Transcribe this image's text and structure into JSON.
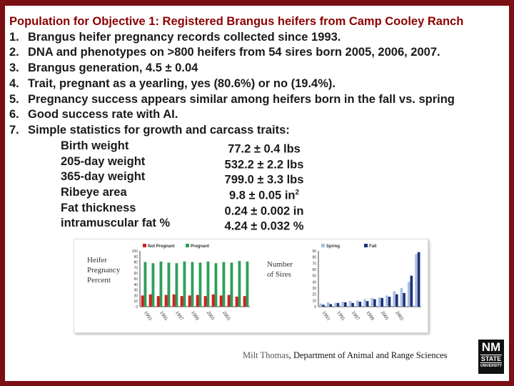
{
  "heading": "Population for Objective 1: Registered Brangus heifers from Camp Cooley Ranch",
  "items": [
    {
      "num": "1.",
      "text": "Brangus heifer pregnancy records collected since 1993."
    },
    {
      "num": "2.",
      "text": "DNA and phenotypes on >800 heifers from 54 sires born 2005, 2006, 2007."
    },
    {
      "num": "3.",
      "text": "Brangus generation, 4.5 ± 0.04"
    },
    {
      "num": "4.",
      "text": "Trait, pregnant as a yearling, yes (80.6%) or no (19.4%)."
    },
    {
      "num": "5.",
      "text": "Pregnancy success appears similar among heifers born in the fall vs. spring"
    },
    {
      "num": "6.",
      "text": "Good success rate with AI."
    },
    {
      "num": "7.",
      "text": "Simple statistics for growth and carcass traits:"
    }
  ],
  "stats": [
    {
      "label": "Birth weight",
      "value": "77.2 ± 0.4 lbs",
      "sup": ""
    },
    {
      "label": "205-day weight",
      "value": "532.2 ± 2.2 lbs",
      "sup": ""
    },
    {
      "label": "365-day weight",
      "value": "799.0 ± 3.3 lbs",
      "sup": ""
    },
    {
      "label": "Ribeye area",
      "value": "9.8 ± 0.05 in",
      "sup": "2"
    },
    {
      "label": "Fat thickness",
      "value": "0.24 ± 0.002 in",
      "sup": ""
    },
    {
      "label": "intramuscular fat %",
      "value": "4.24 ± 0.032 %",
      "sup": ""
    }
  ],
  "figure": {
    "left_ylabel": [
      "Heifer",
      "Pregnancy",
      "Percent"
    ],
    "right_ylabel": [
      "Number",
      "of Sires"
    ]
  },
  "chart_data": [
    {
      "type": "bar",
      "ylabel": "Heifer Pregnancy Percent",
      "ylim": [
        0,
        100
      ],
      "yticks": [
        "0",
        "10",
        "20",
        "30",
        "40",
        "50",
        "60",
        "70",
        "80",
        "90",
        "100"
      ],
      "xticks": [
        "1993",
        "1995",
        "1997",
        "1999",
        "2001",
        "2003"
      ],
      "categories": [
        "1993",
        "1994",
        "1995",
        "1996",
        "1997",
        "1998",
        "1999",
        "2000",
        "2001",
        "2002",
        "2003",
        "2004",
        "2005",
        "2006"
      ],
      "series": [
        {
          "name": "Not Pregnant",
          "color": "#d42020",
          "values": [
            20,
            22,
            19,
            21,
            22,
            19,
            20,
            21,
            19,
            22,
            20,
            21,
            18,
            19
          ]
        },
        {
          "name": "Pregnant",
          "color": "#2f9e5a",
          "values": [
            80,
            78,
            81,
            79,
            78,
            81,
            80,
            79,
            81,
            78,
            80,
            79,
            82,
            81
          ]
        }
      ],
      "legend": "top"
    },
    {
      "type": "bar",
      "ylabel": "Number of Sires",
      "ylim": [
        0,
        90
      ],
      "yticks": [
        "0",
        "10",
        "20",
        "30",
        "40",
        "50",
        "60",
        "70",
        "80",
        "90"
      ],
      "xticks": [
        "1993",
        "1995",
        "1997",
        "1999",
        "2001",
        "2003"
      ],
      "categories": [
        "1993",
        "1994",
        "1995",
        "1996",
        "1997",
        "1998",
        "1999",
        "2000",
        "2001",
        "2002",
        "2003",
        "2004",
        "2005",
        "2006"
      ],
      "series": [
        {
          "name": "Spring",
          "color": "#a8bfe0",
          "values": [
            5,
            7,
            6,
            8,
            9,
            10,
            12,
            14,
            15,
            18,
            25,
            30,
            40,
            85
          ]
        },
        {
          "name": "Fall",
          "color": "#1f2f7a",
          "values": [
            3,
            4,
            6,
            7,
            6,
            8,
            9,
            12,
            14,
            16,
            20,
            22,
            50,
            88
          ]
        }
      ],
      "legend": "top"
    }
  ],
  "footer": {
    "author": "Milt Thomas",
    "dept": ", Department of Animal and Range Sciences"
  },
  "logo": {
    "line1": "NM",
    "line2": "STATE",
    "line3": "UNIVERSITY"
  }
}
